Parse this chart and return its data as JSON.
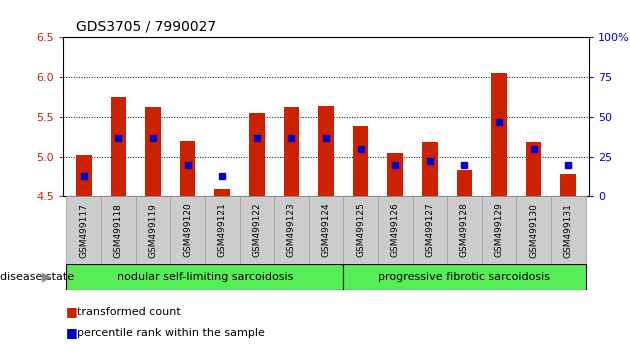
{
  "title": "GDS3705 / 7990027",
  "samples": [
    "GSM499117",
    "GSM499118",
    "GSM499119",
    "GSM499120",
    "GSM499121",
    "GSM499122",
    "GSM499123",
    "GSM499124",
    "GSM499125",
    "GSM499126",
    "GSM499127",
    "GSM499128",
    "GSM499129",
    "GSM499130",
    "GSM499131"
  ],
  "bar_values": [
    5.02,
    5.75,
    5.62,
    5.2,
    4.6,
    5.55,
    5.62,
    5.63,
    5.38,
    5.04,
    5.18,
    4.83,
    6.05,
    5.18,
    4.78
  ],
  "percentile_values": [
    13,
    37,
    37,
    20,
    13,
    37,
    37,
    37,
    30,
    20,
    22,
    20,
    47,
    30,
    20
  ],
  "group1_label": "nodular self-limiting sarcoidosis",
  "group1_count": 8,
  "group2_label": "progressive fibrotic sarcoidosis",
  "group2_count": 7,
  "disease_state_label": "disease state",
  "ylim_left": [
    4.5,
    6.5
  ],
  "ylim_right": [
    0,
    100
  ],
  "yticks_left": [
    4.5,
    5.0,
    5.5,
    6.0,
    6.5
  ],
  "yticks_right": [
    0,
    25,
    50,
    75,
    100
  ],
  "bar_color": "#cc2200",
  "dot_color": "#0000cc",
  "legend1": "transformed count",
  "legend2": "percentile rank within the sample",
  "bar_bottom": 4.5,
  "grid_ticks": [
    5.0,
    5.5,
    6.0
  ],
  "group_color": "#55ee55",
  "ticklabel_bg": "#cccccc"
}
